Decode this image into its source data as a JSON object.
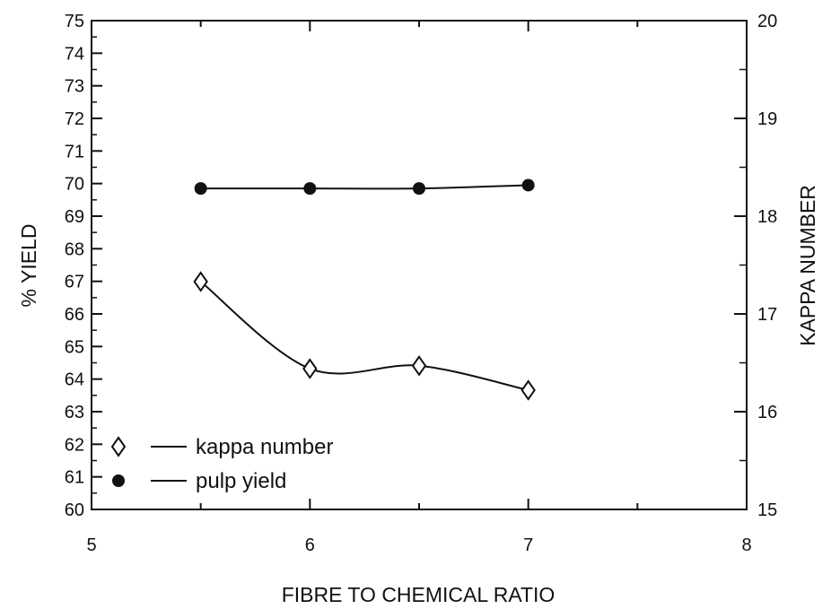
{
  "chart_data": {
    "type": "line",
    "title": "",
    "xlabel": "FIBRE TO CHEMICAL RATIO",
    "ylabel_left": "% YIELD",
    "ylabel_right": "KAPPA NUMBER",
    "xlim": [
      5,
      8
    ],
    "ylim_left": [
      60,
      75
    ],
    "ylim_right": [
      15,
      20
    ],
    "x_ticks": [
      "5",
      "6",
      "7",
      "8"
    ],
    "y_left_ticks": [
      "60",
      "61",
      "62",
      "63",
      "64",
      "65",
      "66",
      "67",
      "68",
      "69",
      "70",
      "71",
      "72",
      "73",
      "74",
      "75"
    ],
    "y_right_ticks": [
      "15",
      "16",
      "17",
      "18",
      "19",
      "20"
    ],
    "grid": false,
    "legend_position": "bottom-left",
    "series": [
      {
        "name": "kappa number",
        "axis": "right",
        "marker": "diamond-open",
        "x": [
          5.5,
          6,
          6.5,
          7
        ],
        "y": [
          17.33,
          16.44,
          16.47,
          16.22
        ]
      },
      {
        "name": "pulp yield",
        "axis": "left",
        "marker": "circle-filled",
        "x": [
          5.5,
          6,
          6.5,
          7
        ],
        "y": [
          69.85,
          69.85,
          69.85,
          69.95
        ]
      }
    ]
  }
}
